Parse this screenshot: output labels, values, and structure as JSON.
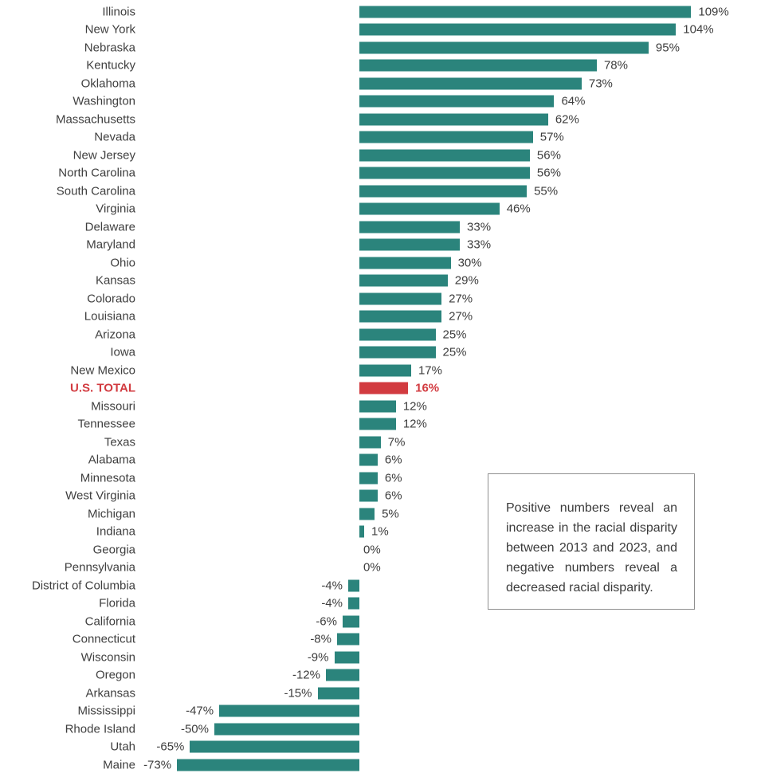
{
  "chart_data": {
    "type": "bar",
    "orientation": "horizontal",
    "value_unit": "percent",
    "categories": [
      "Illinois",
      "New York",
      "Nebraska",
      "Kentucky",
      "Oklahoma",
      "Washington",
      "Massachusetts",
      "Nevada",
      "New Jersey",
      "North Carolina",
      "South Carolina",
      "Virginia",
      "Delaware",
      "Maryland",
      "Ohio",
      "Kansas",
      "Colorado",
      "Louisiana",
      "Arizona",
      "Iowa",
      "New Mexico",
      "U.S. TOTAL",
      "Missouri",
      "Tennessee",
      "Texas",
      "Alabama",
      "Minnesota",
      "West Virginia",
      "Michigan",
      "Indiana",
      "Georgia",
      "Pennsylvania",
      "District of Columbia",
      "Florida",
      "California",
      "Connecticut",
      "Wisconsin",
      "Oregon",
      "Arkansas",
      "Mississippi",
      "Rhode Island",
      "Utah",
      "Maine"
    ],
    "values": [
      109,
      104,
      95,
      78,
      73,
      64,
      62,
      57,
      56,
      56,
      55,
      46,
      33,
      33,
      30,
      29,
      27,
      27,
      25,
      25,
      17,
      16,
      12,
      12,
      7,
      6,
      6,
      6,
      5,
      1,
      0,
      0,
      -4,
      -4,
      -6,
      -8,
      -9,
      -12,
      -15,
      -47,
      -50,
      -65,
      -73
    ],
    "value_labels": [
      "109%",
      "104%",
      "95%",
      "78%",
      "73%",
      "64%",
      "62%",
      "57%",
      "56%",
      "56%",
      "55%",
      "46%",
      "33%",
      "33%",
      "30%",
      "29%",
      "27%",
      "27%",
      "25%",
      "25%",
      "17%",
      "16%",
      "12%",
      "12%",
      "7%",
      "6%",
      "6%",
      "6%",
      "5%",
      "1%",
      "0%",
      "0%",
      "-4%",
      "-4%",
      "-6%",
      "-8%",
      "-9%",
      "-12%",
      "-15%",
      "-47%",
      "-50%",
      "-65%",
      "-73%"
    ],
    "highlight": {
      "category": "U.S. TOTAL",
      "value": 16,
      "label": "16%"
    },
    "axis": {
      "xlim": [
        -73,
        109
      ],
      "zero_baseline": true,
      "gridlines": false,
      "legend": "none"
    },
    "colors": {
      "bar": "#2b847c",
      "highlight_bar": "#d23b40",
      "label_text": "#3f3f3f"
    }
  },
  "annotation_box": {
    "text": "Positive numbers reveal an increase in the racial disparity between 2013 and 2023, and negative numbers reveal a decreased racial disparity."
  }
}
